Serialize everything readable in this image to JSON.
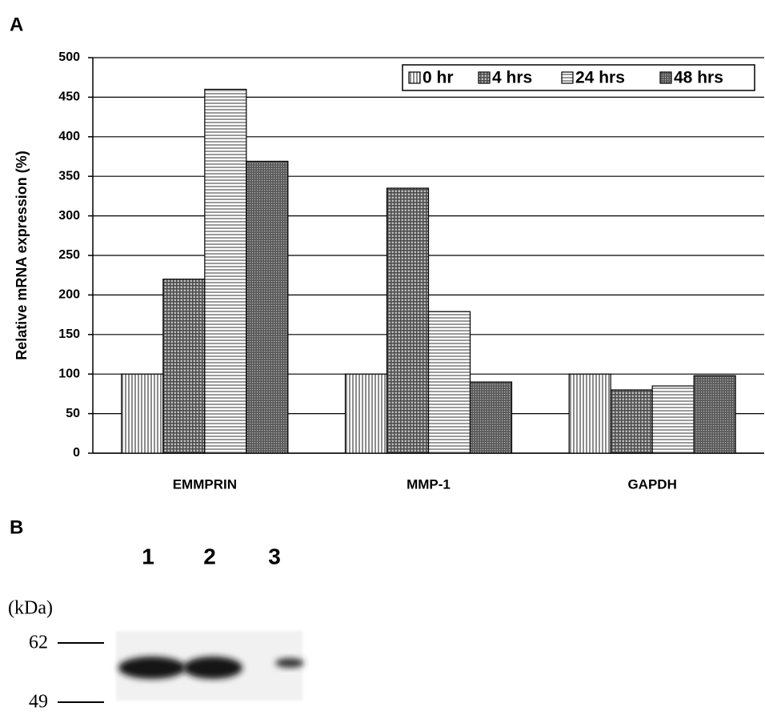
{
  "chart_data": {
    "type": "bar",
    "y_label": "Relative mRNA expression (%)",
    "categories": [
      "EMMPRIN",
      "MMP-1",
      "GAPDH"
    ],
    "series": [
      {
        "name": "0 hr",
        "color": "#8c8c8c",
        "values": [
          100,
          100,
          100
        ]
      },
      {
        "name": "4 hrs",
        "color": "#4a4a4a",
        "values": [
          220,
          335,
          80
        ]
      },
      {
        "name": "24 hrs",
        "color": "#9a9a9a",
        "values": [
          460,
          179,
          85
        ]
      },
      {
        "name": "48 hrs",
        "color": "#5a5a5a",
        "values": [
          369,
          90,
          98
        ]
      }
    ],
    "ylim": [
      0,
      500
    ],
    "yticks": [
      0,
      50,
      100,
      150,
      200,
      250,
      300,
      350,
      400,
      450,
      500
    ],
    "grid": true,
    "legend": "top-right"
  },
  "panel_labels": [
    "A",
    "B"
  ],
  "blot": {
    "lanes": [
      "1",
      "2",
      "3"
    ],
    "unit": "(kDa)",
    "markers": [
      "62",
      "49"
    ]
  }
}
